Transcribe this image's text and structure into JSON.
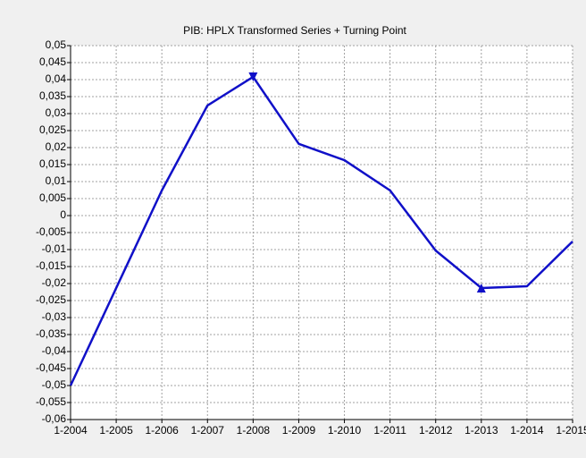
{
  "chart_data": {
    "type": "line",
    "title": "PIB: HPLX Transformed Series + Turning Point",
    "categories": [
      "1-2004",
      "1-2005",
      "1-2006",
      "1-2007",
      "1-2008",
      "1-2009",
      "1-2010",
      "1-2011",
      "1-2012",
      "1-2013",
      "1-2014",
      "1-2015"
    ],
    "series": [
      {
        "color": "#1010c8",
        "values": [
          -0.05,
          -0.0213,
          0.0074,
          0.0324,
          0.0408,
          0.0211,
          0.0163,
          0.0074,
          -0.0103,
          -0.0213,
          -0.0208,
          -0.0076
        ]
      }
    ],
    "markers": [
      {
        "index": 4,
        "shape": "down"
      },
      {
        "index": 9,
        "shape": "up"
      }
    ],
    "ylim": [
      -0.06,
      0.05
    ],
    "yticks": [
      {
        "value": -0.06,
        "label": "-0,06"
      },
      {
        "value": -0.055,
        "label": "-0,055"
      },
      {
        "value": -0.05,
        "label": "-0,05"
      },
      {
        "value": -0.045,
        "label": "-0,045"
      },
      {
        "value": -0.04,
        "label": "-0,04"
      },
      {
        "value": -0.035,
        "label": "-0,035"
      },
      {
        "value": -0.03,
        "label": "-0,03"
      },
      {
        "value": -0.025,
        "label": "-0,025"
      },
      {
        "value": -0.02,
        "label": "-0,02"
      },
      {
        "value": -0.015,
        "label": "-0,015"
      },
      {
        "value": -0.01,
        "label": "-0,01"
      },
      {
        "value": -0.005,
        "label": "-0,005"
      },
      0,
      {
        "value": 0.005,
        "label": "0,005"
      },
      {
        "value": 0.01,
        "label": "0,01"
      },
      {
        "value": 0.015,
        "label": "0,015"
      },
      {
        "value": 0.02,
        "label": "0,02"
      },
      {
        "value": 0.025,
        "label": "0,025"
      },
      {
        "value": 0.03,
        "label": "0,03"
      },
      {
        "value": 0.035,
        "label": "0,035"
      },
      {
        "value": 0.04,
        "label": "0,04"
      },
      {
        "value": 0.045,
        "label": "0,045"
      },
      {
        "value": 0.05,
        "label": "0,05"
      }
    ],
    "grid": true
  }
}
